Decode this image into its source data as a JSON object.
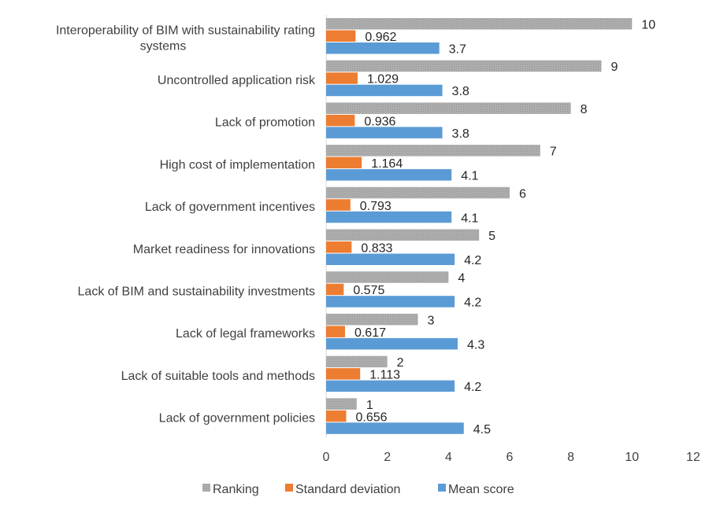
{
  "chart_data": {
    "type": "bar",
    "orientation": "horizontal",
    "categories": [
      [
        "Interoperability of BIM with sustainability rating",
        "systems"
      ],
      [
        "Uncontrolled application risk"
      ],
      [
        "Lack of promotion"
      ],
      [
        "High cost of implementation"
      ],
      [
        "Lack of government incentives"
      ],
      [
        "Market readiness for innovations"
      ],
      [
        "Lack of BIM and sustainability investments"
      ],
      [
        "Lack of legal frameworks"
      ],
      [
        "Lack of suitable tools and methods"
      ],
      [
        "Lack of government policies"
      ]
    ],
    "series": [
      {
        "name": "Ranking",
        "color": "#a5a5a5",
        "pattern": "dotted-gray",
        "values": [
          10,
          9,
          8,
          7,
          6,
          5,
          4,
          3,
          2,
          1
        ],
        "labels": [
          "10",
          "9",
          "8",
          "7",
          "6",
          "5",
          "4",
          "3",
          "2",
          "1"
        ]
      },
      {
        "name": "Standard deviation",
        "color": "#ed7d31",
        "values": [
          0.962,
          1.029,
          0.936,
          1.164,
          0.793,
          0.833,
          0.575,
          0.617,
          1.113,
          0.656
        ],
        "labels": [
          "0.962",
          "1.029",
          "0.936",
          "1.164",
          "0.793",
          "0.833",
          "0.575",
          "0.617",
          "1.113",
          "0.656"
        ]
      },
      {
        "name": "Mean score",
        "color": "#5b9bd5",
        "values": [
          3.7,
          3.8,
          3.8,
          4.1,
          4.1,
          4.2,
          4.2,
          4.3,
          4.2,
          4.5
        ],
        "labels": [
          "3.7",
          "3.8",
          "3.8",
          "4.1",
          "4.1",
          "4.2",
          "4.2",
          "4.3",
          "4.2",
          "4.5"
        ]
      }
    ],
    "xlim": [
      0,
      12
    ],
    "xticks": [
      0,
      2,
      4,
      6,
      8,
      10,
      12
    ],
    "xtick_labels": [
      "0",
      "2",
      "4",
      "6",
      "8",
      "10",
      "12"
    ],
    "grid": false,
    "legend_position": "bottom",
    "title": "",
    "xlabel": "",
    "ylabel": ""
  }
}
